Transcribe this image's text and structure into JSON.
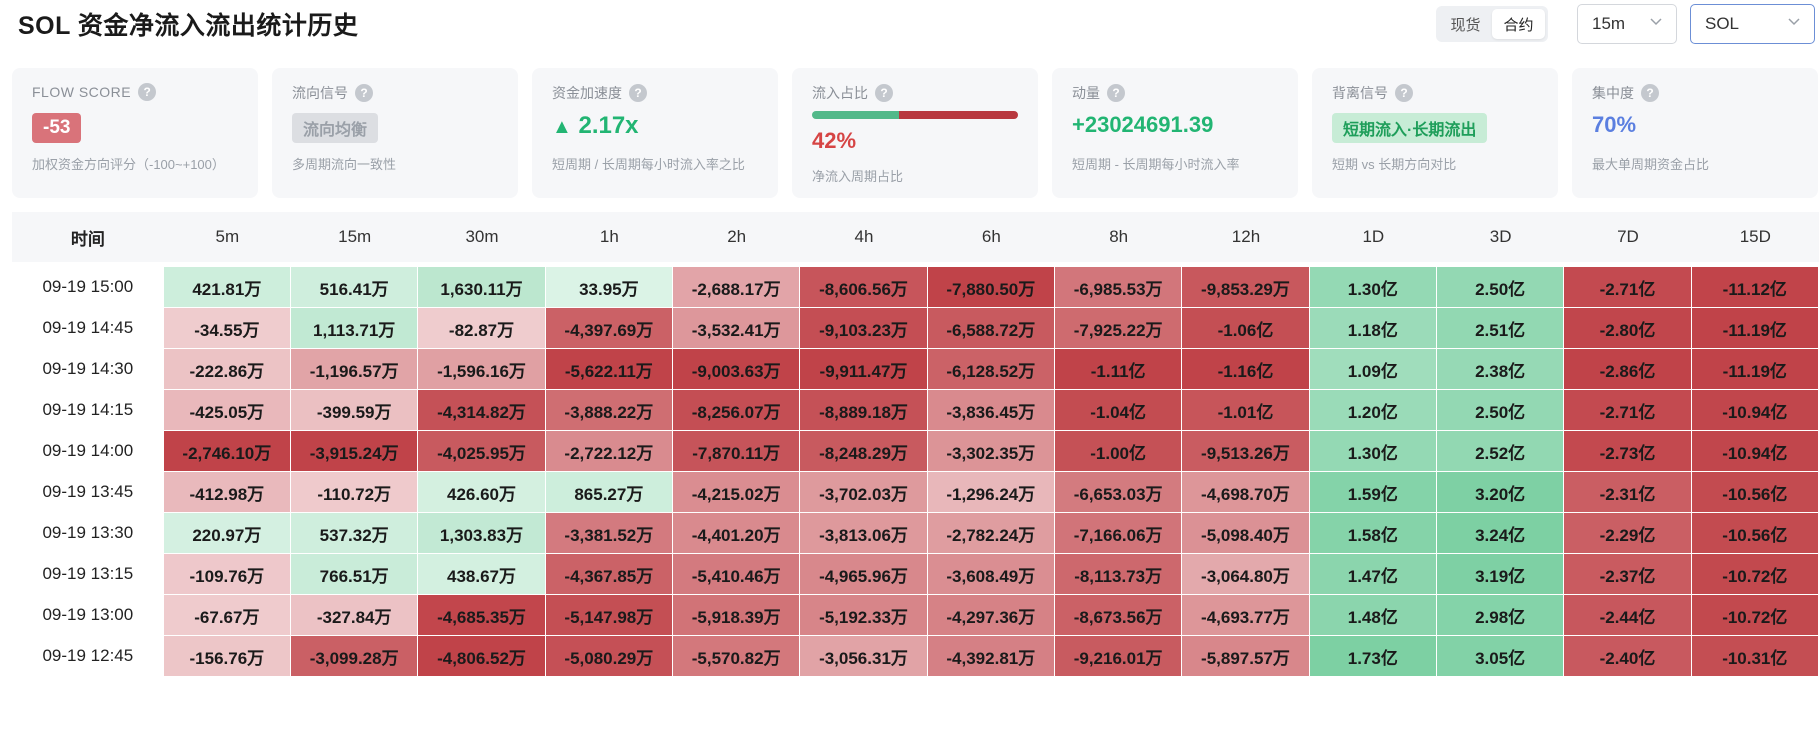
{
  "header": {
    "title": "SOL 资金净流入流出统计历史",
    "market_tabs": [
      {
        "label": "现货",
        "active": false
      },
      {
        "label": "合约",
        "active": true
      }
    ],
    "interval_select": {
      "value": "15m"
    },
    "symbol_select": {
      "value": "SOL"
    },
    "chevron_icon": "chevron-down-icon"
  },
  "cards": {
    "flow_score": {
      "label": "FLOW SCORE",
      "value": "-53",
      "sub": "加权资金方向评分（-100~+100）"
    },
    "flow_signal": {
      "label": "流向信号",
      "value": "流向均衡",
      "sub": "多周期流向一致性"
    },
    "acceleration": {
      "label": "资金加速度",
      "arrow": "▲",
      "value": "2.17x",
      "sub": "短周期 / 长周期每小时流入率之比"
    },
    "inflow_ratio": {
      "label": "流入占比",
      "value": "42%",
      "fraction": 0.42,
      "sub": "净流入周期占比"
    },
    "momentum": {
      "label": "动量",
      "value": "+23024691.39",
      "sub": "短周期 - 长周期每小时流入率"
    },
    "divergence": {
      "label": "背离信号",
      "value": "短期流入·长期流出",
      "sub": "短期 vs 长期方向对比"
    },
    "concentration": {
      "label": "集中度",
      "value": "70%",
      "sub": "最大单周期资金占比"
    },
    "help_icon_glyph": "?"
  },
  "colors": {
    "score_badge_bg": "#d9737a",
    "signal_badge_bg": "#dcdee2",
    "accent_green": "#16a34a",
    "accent_red": "#d64545",
    "accent_blue": "#5b7fe0",
    "divergence_badge_bg": "#c7ecd6"
  },
  "table": {
    "time_header": "时间",
    "columns": [
      "5m",
      "15m",
      "30m",
      "1h",
      "2h",
      "4h",
      "6h",
      "8h",
      "12h",
      "1D",
      "3D",
      "7D",
      "15D"
    ],
    "rows": [
      {
        "time": "09-19 15:00",
        "cells": [
          [
            "421.81万",
            421.81
          ],
          [
            "516.41万",
            516.41
          ],
          [
            "1,630.11万",
            1630.11
          ],
          [
            "33.95万",
            33.95
          ],
          [
            "-2,688.17万",
            -2688.17
          ],
          [
            "-8,606.56万",
            -8606.56
          ],
          [
            "-7,880.50万",
            -7880.5
          ],
          [
            "-6,985.53万",
            -6985.53
          ],
          [
            "-9,853.29万",
            -9853.29
          ],
          [
            "1.30亿",
            13000
          ],
          [
            "2.50亿",
            25000
          ],
          [
            "-2.71亿",
            -27100
          ],
          [
            "-11.12亿",
            -111200
          ]
        ]
      },
      {
        "time": "09-19 14:45",
        "cells": [
          [
            "-34.55万",
            -34.55
          ],
          [
            "1,113.71万",
            1113.71
          ],
          [
            "-82.87万",
            -82.87
          ],
          [
            "-4,397.69万",
            -4397.69
          ],
          [
            "-3,532.41万",
            -3532.41
          ],
          [
            "-9,103.23万",
            -9103.23
          ],
          [
            "-6,588.72万",
            -6588.72
          ],
          [
            "-7,925.22万",
            -7925.22
          ],
          [
            "-1.06亿",
            -10600
          ],
          [
            "1.18亿",
            11800
          ],
          [
            "2.51亿",
            25100
          ],
          [
            "-2.80亿",
            -28000
          ],
          [
            "-11.19亿",
            -111900
          ]
        ]
      },
      {
        "time": "09-19 14:30",
        "cells": [
          [
            "-222.86万",
            -222.86
          ],
          [
            "-1,196.57万",
            -1196.57
          ],
          [
            "-1,596.16万",
            -1596.16
          ],
          [
            "-5,622.11万",
            -5622.11
          ],
          [
            "-9,003.63万",
            -9003.63
          ],
          [
            "-9,911.47万",
            -9911.47
          ],
          [
            "-6,128.52万",
            -6128.52
          ],
          [
            "-1.11亿",
            -11100
          ],
          [
            "-1.16亿",
            -11600
          ],
          [
            "1.09亿",
            10900
          ],
          [
            "2.38亿",
            23800
          ],
          [
            "-2.86亿",
            -28600
          ],
          [
            "-11.19亿",
            -111900
          ]
        ]
      },
      {
        "time": "09-19 14:15",
        "cells": [
          [
            "-425.05万",
            -425.05
          ],
          [
            "-399.59万",
            -399.59
          ],
          [
            "-4,314.82万",
            -4314.82
          ],
          [
            "-3,888.22万",
            -3888.22
          ],
          [
            "-8,256.07万",
            -8256.07
          ],
          [
            "-8,889.18万",
            -8889.18
          ],
          [
            "-3,836.45万",
            -3836.45
          ],
          [
            "-1.04亿",
            -10400
          ],
          [
            "-1.01亿",
            -10100
          ],
          [
            "1.20亿",
            12000
          ],
          [
            "2.50亿",
            25000
          ],
          [
            "-2.71亿",
            -27100
          ],
          [
            "-10.94亿",
            -109400
          ]
        ]
      },
      {
        "time": "09-19 14:00",
        "cells": [
          [
            "-2,746.10万",
            -2746.1
          ],
          [
            "-3,915.24万",
            -3915.24
          ],
          [
            "-4,025.95万",
            -4025.95
          ],
          [
            "-2,722.12万",
            -2722.12
          ],
          [
            "-7,870.11万",
            -7870.11
          ],
          [
            "-8,248.29万",
            -8248.29
          ],
          [
            "-3,302.35万",
            -3302.35
          ],
          [
            "-1.00亿",
            -10000
          ],
          [
            "-9,513.26万",
            -9513.26
          ],
          [
            "1.30亿",
            13000
          ],
          [
            "2.52亿",
            25200
          ],
          [
            "-2.73亿",
            -27300
          ],
          [
            "-10.94亿",
            -109400
          ]
        ]
      },
      {
        "time": "09-19 13:45",
        "cells": [
          [
            "-412.98万",
            -412.98
          ],
          [
            "-110.72万",
            -110.72
          ],
          [
            "426.60万",
            426.6
          ],
          [
            "865.27万",
            865.27
          ],
          [
            "-4,215.02万",
            -4215.02
          ],
          [
            "-3,702.03万",
            -3702.03
          ],
          [
            "-1,296.24万",
            -1296.24
          ],
          [
            "-6,653.03万",
            -6653.03
          ],
          [
            "-4,698.70万",
            -4698.7
          ],
          [
            "1.59亿",
            15900
          ],
          [
            "3.20亿",
            32000
          ],
          [
            "-2.31亿",
            -23100
          ],
          [
            "-10.56亿",
            -105600
          ]
        ]
      },
      {
        "time": "09-19 13:30",
        "cells": [
          [
            "220.97万",
            220.97
          ],
          [
            "537.32万",
            537.32
          ],
          [
            "1,303.83万",
            1303.83
          ],
          [
            "-3,381.52万",
            -3381.52
          ],
          [
            "-4,401.20万",
            -4401.2
          ],
          [
            "-3,813.06万",
            -3813.06
          ],
          [
            "-2,782.24万",
            -2782.24
          ],
          [
            "-7,166.06万",
            -7166.06
          ],
          [
            "-5,098.40万",
            -5098.4
          ],
          [
            "1.58亿",
            15800
          ],
          [
            "3.24亿",
            32400
          ],
          [
            "-2.29亿",
            -22900
          ],
          [
            "-10.56亿",
            -105600
          ]
        ]
      },
      {
        "time": "09-19 13:15",
        "cells": [
          [
            "-109.76万",
            -109.76
          ],
          [
            "766.51万",
            766.51
          ],
          [
            "438.67万",
            438.67
          ],
          [
            "-4,367.85万",
            -4367.85
          ],
          [
            "-5,410.46万",
            -5410.46
          ],
          [
            "-4,965.96万",
            -4965.96
          ],
          [
            "-3,608.49万",
            -3608.49
          ],
          [
            "-8,113.73万",
            -8113.73
          ],
          [
            "-3,064.80万",
            -3064.8
          ],
          [
            "1.47亿",
            14700
          ],
          [
            "3.19亿",
            31900
          ],
          [
            "-2.37亿",
            -23700
          ],
          [
            "-10.72亿",
            -107200
          ]
        ]
      },
      {
        "time": "09-19 13:00",
        "cells": [
          [
            "-67.67万",
            -67.67
          ],
          [
            "-327.84万",
            -327.84
          ],
          [
            "-4,685.35万",
            -4685.35
          ],
          [
            "-5,147.98万",
            -5147.98
          ],
          [
            "-5,918.39万",
            -5918.39
          ],
          [
            "-5,192.33万",
            -5192.33
          ],
          [
            "-4,297.36万",
            -4297.36
          ],
          [
            "-8,673.56万",
            -8673.56
          ],
          [
            "-4,693.77万",
            -4693.77
          ],
          [
            "1.48亿",
            14800
          ],
          [
            "2.98亿",
            29800
          ],
          [
            "-2.44亿",
            -24400
          ],
          [
            "-10.72亿",
            -107200
          ]
        ]
      },
      {
        "time": "09-19 12:45",
        "cells": [
          [
            "-156.76万",
            -156.76
          ],
          [
            "-3,099.28万",
            -3099.28
          ],
          [
            "-4,806.52万",
            -4806.52
          ],
          [
            "-5,080.29万",
            -5080.29
          ],
          [
            "-5,570.82万",
            -5570.82
          ],
          [
            "-3,056.31万",
            -3056.31
          ],
          [
            "-4,392.81万",
            -4392.81
          ],
          [
            "-9,216.01万",
            -9216.01
          ],
          [
            "-5,897.57万",
            -5897.57
          ],
          [
            "1.73亿",
            17300
          ],
          [
            "3.05亿",
            30500
          ],
          [
            "-2.40亿",
            -24000
          ],
          [
            "-10.31亿",
            -103100
          ]
        ]
      }
    ]
  }
}
